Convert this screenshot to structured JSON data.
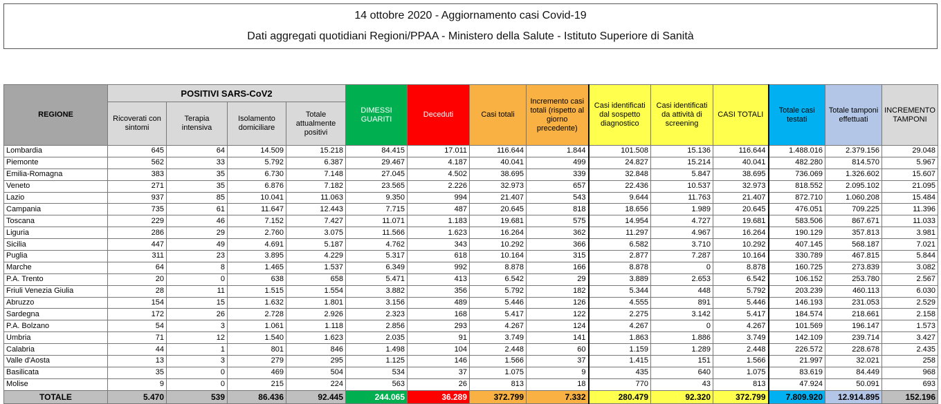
{
  "title": "14 ottobre 2020 - Aggiornamento casi Covid-19",
  "subtitle": "Dati aggregati quotidiani Regioni/PPAA - Ministero della Salute - Istituto Superiore di Sanità",
  "colors": {
    "dimessi": "#00b050",
    "deceduti": "#ff0000",
    "casi": "#f8b142",
    "identificati": "#ffff4d",
    "testati": "#00b0f0",
    "tamponi": "#b4c6e7",
    "grey": "#d9d9d9"
  },
  "header": {
    "regione": "REGIONE",
    "positivi_group": "POSITIVI SARS-CoV2",
    "columns": [
      "Ricoverati con sintomi",
      "Terapia intensiva",
      "Isolamento domiciliare",
      "Totale attualmente positivi",
      "DIMESSI GUARITI",
      "Deceduti",
      "Casi totali",
      "Incremento casi totali (rispetto al giorno precedente)",
      "Casi identificati dal sospetto diagnostico",
      "Casi identificati da attività di screening",
      "CASI TOTALI",
      "Totale casi testati",
      "Totale tamponi effettuati",
      "INCREMENTO TAMPONI"
    ]
  },
  "rows": [
    [
      "Lombardia",
      "645",
      "64",
      "14.509",
      "15.218",
      "84.415",
      "17.011",
      "116.644",
      "1.844",
      "101.508",
      "15.136",
      "116.644",
      "1.488.016",
      "2.379.156",
      "29.048"
    ],
    [
      "Piemonte",
      "562",
      "33",
      "5.792",
      "6.387",
      "29.467",
      "4.187",
      "40.041",
      "499",
      "24.827",
      "15.214",
      "40.041",
      "482.280",
      "814.570",
      "5.967"
    ],
    [
      "Emilia-Romagna",
      "383",
      "35",
      "6.730",
      "7.148",
      "27.045",
      "4.502",
      "38.695",
      "339",
      "32.848",
      "5.847",
      "38.695",
      "736.069",
      "1.326.602",
      "15.607"
    ],
    [
      "Veneto",
      "271",
      "35",
      "6.876",
      "7.182",
      "23.565",
      "2.226",
      "32.973",
      "657",
      "22.436",
      "10.537",
      "32.973",
      "818.552",
      "2.095.102",
      "21.095"
    ],
    [
      "Lazio",
      "937",
      "85",
      "10.041",
      "11.063",
      "9.350",
      "994",
      "21.407",
      "543",
      "9.644",
      "11.763",
      "21.407",
      "872.710",
      "1.060.208",
      "15.484"
    ],
    [
      "Campania",
      "735",
      "61",
      "11.647",
      "12.443",
      "7.715",
      "487",
      "20.645",
      "818",
      "18.656",
      "1.989",
      "20.645",
      "476.051",
      "709.225",
      "11.396"
    ],
    [
      "Toscana",
      "229",
      "46",
      "7.152",
      "7.427",
      "11.071",
      "1.183",
      "19.681",
      "575",
      "14.954",
      "4.727",
      "19.681",
      "583.506",
      "867.671",
      "11.033"
    ],
    [
      "Liguria",
      "286",
      "29",
      "2.760",
      "3.075",
      "11.566",
      "1.623",
      "16.264",
      "362",
      "11.297",
      "4.967",
      "16.264",
      "190.129",
      "357.813",
      "3.981"
    ],
    [
      "Sicilia",
      "447",
      "49",
      "4.691",
      "5.187",
      "4.762",
      "343",
      "10.292",
      "366",
      "6.582",
      "3.710",
      "10.292",
      "407.145",
      "568.187",
      "7.021"
    ],
    [
      "Puglia",
      "311",
      "23",
      "3.895",
      "4.229",
      "5.317",
      "618",
      "10.164",
      "315",
      "2.877",
      "7.287",
      "10.164",
      "330.789",
      "467.815",
      "5.844"
    ],
    [
      "Marche",
      "64",
      "8",
      "1.465",
      "1.537",
      "6.349",
      "992",
      "8.878",
      "166",
      "8.878",
      "0",
      "8.878",
      "160.725",
      "273.839",
      "3.082"
    ],
    [
      "P.A. Trento",
      "20",
      "0",
      "638",
      "658",
      "5.471",
      "413",
      "6.542",
      "29",
      "3.889",
      "2.653",
      "6.542",
      "106.152",
      "253.780",
      "2.567"
    ],
    [
      "Friuli Venezia Giulia",
      "28",
      "11",
      "1.515",
      "1.554",
      "3.882",
      "356",
      "5.792",
      "182",
      "5.344",
      "448",
      "5.792",
      "203.239",
      "460.113",
      "6.030"
    ],
    [
      "Abruzzo",
      "154",
      "15",
      "1.632",
      "1.801",
      "3.156",
      "489",
      "5.446",
      "126",
      "4.555",
      "891",
      "5.446",
      "146.193",
      "231.053",
      "2.529"
    ],
    [
      "Sardegna",
      "172",
      "26",
      "2.728",
      "2.926",
      "2.323",
      "168",
      "5.417",
      "122",
      "2.275",
      "3.142",
      "5.417",
      "184.574",
      "218.661",
      "2.158"
    ],
    [
      "P.A. Bolzano",
      "54",
      "3",
      "1.061",
      "1.118",
      "2.856",
      "293",
      "4.267",
      "124",
      "4.267",
      "0",
      "4.267",
      "101.569",
      "196.147",
      "1.573"
    ],
    [
      "Umbria",
      "71",
      "12",
      "1.540",
      "1.623",
      "2.035",
      "91",
      "3.749",
      "141",
      "1.863",
      "1.886",
      "3.749",
      "142.109",
      "239.714",
      "3.427"
    ],
    [
      "Calabria",
      "44",
      "1",
      "801",
      "846",
      "1.498",
      "104",
      "2.448",
      "60",
      "1.159",
      "1.289",
      "2.448",
      "226.572",
      "228.678",
      "2.435"
    ],
    [
      "Valle d'Aosta",
      "13",
      "3",
      "279",
      "295",
      "1.125",
      "146",
      "1.566",
      "37",
      "1.415",
      "151",
      "1.566",
      "21.997",
      "32.021",
      "258"
    ],
    [
      "Basilicata",
      "35",
      "0",
      "469",
      "504",
      "534",
      "37",
      "1.075",
      "9",
      "435",
      "640",
      "1.075",
      "83.619",
      "84.449",
      "968"
    ],
    [
      "Molise",
      "9",
      "0",
      "215",
      "224",
      "563",
      "26",
      "813",
      "18",
      "770",
      "43",
      "813",
      "47.924",
      "50.091",
      "693"
    ]
  ],
  "totals": [
    "TOTALE",
    "5.470",
    "539",
    "86.436",
    "92.445",
    "244.065",
    "36.289",
    "372.799",
    "7.332",
    "280.479",
    "92.320",
    "372.799",
    "7.809.920",
    "12.914.895",
    "152.196"
  ]
}
